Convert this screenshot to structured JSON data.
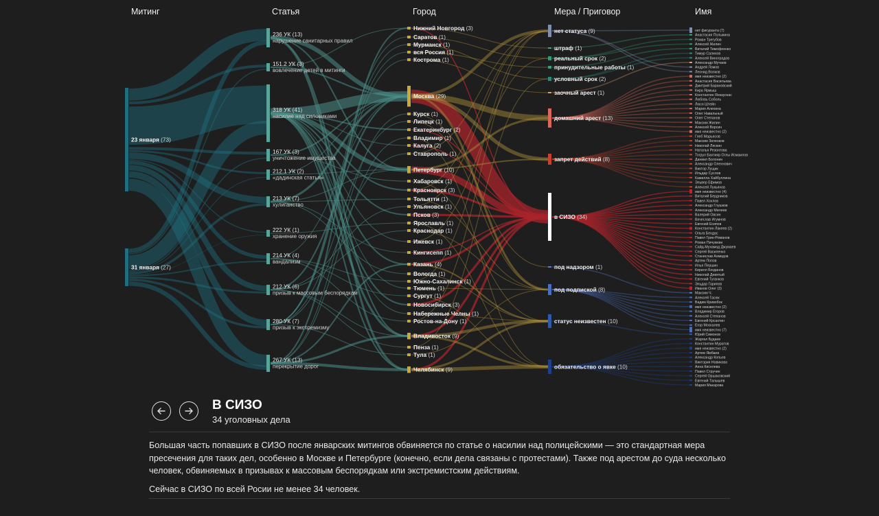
{
  "columns": [
    "Митинг",
    "Статья",
    "Город",
    "Мера / Приговор",
    "Имя"
  ],
  "colors": {
    "background": "#1e1e1e",
    "rally": "#1f6f80",
    "article": "#5aa59a",
    "city": "#c9a83c",
    "sizo": "#c0222b",
    "link_sizo": "#a8242b",
    "link_teal": "#4a8e88",
    "link_gold": "#b0913a"
  },
  "chart_data": {
    "type": "sankey",
    "rallies": [
      {
        "label": "23 января",
        "count": 73
      },
      {
        "label": "31 января",
        "count": 27
      }
    ],
    "articles": [
      {
        "code": "236 УК",
        "count": 13,
        "desc": "нарушение санитарных правил"
      },
      {
        "code": "151.2 УК",
        "count": 3,
        "desc": "вовлечение детей в митинги"
      },
      {
        "code": "318 УК",
        "count": 41,
        "desc": "насилие над силовиками"
      },
      {
        "code": "167 УК",
        "count": 3,
        "desc": "уничтожение имущества"
      },
      {
        "code": "212.1 УК",
        "count": 2,
        "desc": "«дадинская статья»"
      },
      {
        "code": "213 УК",
        "count": 7,
        "desc": "хулиганство"
      },
      {
        "code": "222 УК",
        "count": 1,
        "desc": "хранение оружия"
      },
      {
        "code": "214 УК",
        "count": 4,
        "desc": "вандализм"
      },
      {
        "code": "212 УК",
        "count": 6,
        "desc": "призыв к массовым беспорядкам"
      },
      {
        "code": "280 УК",
        "count": 7,
        "desc": "призыв к экстремизму"
      },
      {
        "code": "267 УК",
        "count": 13,
        "desc": "перекрытие дорог"
      }
    ],
    "cities": [
      {
        "label": "Нижний Новгород",
        "count": 3
      },
      {
        "label": "Саратов",
        "count": 1
      },
      {
        "label": "Мурманск",
        "count": 1
      },
      {
        "label": "вся Россия",
        "count": 1
      },
      {
        "label": "Кострома",
        "count": 1
      },
      {
        "label": "Москва",
        "count": 29
      },
      {
        "label": "Курск",
        "count": 1
      },
      {
        "label": "Липецк",
        "count": 1
      },
      {
        "label": "Екатеринбург",
        "count": 2
      },
      {
        "label": "Владимир",
        "count": 1
      },
      {
        "label": "Калуга",
        "count": 2
      },
      {
        "label": "Ставрополь",
        "count": 1
      },
      {
        "label": "Петербург",
        "count": 10
      },
      {
        "label": "Хабаровск",
        "count": 1
      },
      {
        "label": "Красноярск",
        "count": 3
      },
      {
        "label": "Тольятти",
        "count": 1
      },
      {
        "label": "Ульяновск",
        "count": 1
      },
      {
        "label": "Псков",
        "count": 3
      },
      {
        "label": "Ярославль",
        "count": 1
      },
      {
        "label": "Краснодар",
        "count": 1
      },
      {
        "label": "Ижевск",
        "count": 1
      },
      {
        "label": "Кингисепп",
        "count": 1
      },
      {
        "label": "Казань",
        "count": 4
      },
      {
        "label": "Вологда",
        "count": 1
      },
      {
        "label": "Южно-Сахалинск",
        "count": 1
      },
      {
        "label": "Тюмень",
        "count": 1
      },
      {
        "label": "Сургут",
        "count": 1
      },
      {
        "label": "Новосибирск",
        "count": 3
      },
      {
        "label": "Набережные Челны",
        "count": 1
      },
      {
        "label": "Ростов-на-Дону",
        "count": 1
      },
      {
        "label": "Владивосток",
        "count": 9
      },
      {
        "label": "Пенза",
        "count": 1
      },
      {
        "label": "Тула",
        "count": 1
      },
      {
        "label": "Челябинск",
        "count": 9
      }
    ],
    "measures": [
      {
        "label": "нет статуса",
        "count": 9,
        "color": "#7f8fae"
      },
      {
        "label": "штраф",
        "count": 1,
        "color": "#3fa582"
      },
      {
        "label": "реальный срок",
        "count": 2,
        "color": "#2f9b6e"
      },
      {
        "label": "принудительные работы",
        "count": 1,
        "color": "#3a9e7a"
      },
      {
        "label": "условный срок",
        "count": 2,
        "color": "#2a8a7a"
      },
      {
        "label": "заочный арест",
        "count": 1,
        "color": "#e0a070"
      },
      {
        "label": "домашний арест",
        "count": 13,
        "color": "#d9685a"
      },
      {
        "label": "запрет действий",
        "count": 8,
        "color": "#c8412f"
      },
      {
        "label": "в СИЗО",
        "count": 34,
        "color": "#ffffff"
      },
      {
        "label": "под надзором",
        "count": 1,
        "color": "#5a7ed0"
      },
      {
        "label": "под подпиской",
        "count": 8,
        "color": "#4a6fc0"
      },
      {
        "label": "статус неизвестен",
        "count": 10,
        "color": "#2f5aa8"
      },
      {
        "label": "обязательство о явке",
        "count": 10,
        "color": "#1f3f88"
      }
    ],
    "names": [
      "нет фигуранта (7)",
      "Анастасия Полыкина",
      "Роман Трегубов",
      "Алексей Жилин",
      "Виталий Тимофеенко",
      "Тимур Салихов",
      "Алексей Виноградов",
      "Александр Мучаев",
      "Андрей Ломов",
      "Леонид Волков",
      "имя неизвестно (2)",
      "Анастасия Васильева",
      "Дмитрий Барановский",
      "Кира Ярмыш",
      "Константин Янкаускас",
      "Любовь Соболь",
      "Люся Штейн",
      "Мария Алехина",
      "Олег Навальный",
      "Олег Степанов",
      "Максим Жилин",
      "Алексей Ворсин",
      "имя неизвестно (2)",
      "Глеб Марьясов",
      "Максим Зеленков",
      "Николай Ляскин",
      "Наталья Резонтова",
      "Тогрул Бахтияр Оглы Исмаилов",
      "Даниил Болонин",
      "Александр Олехнович",
      "Виктор Лущик",
      "Ильдар Суслов",
      "Камилла Хайбуллина",
      "Эльвер Ефимов",
      "Алексей Лукьянов",
      "имя неизвестно (4)",
      "Виталий Бердников",
      "Павел Хохлов",
      "Александр Глушков",
      "Александр Милеев",
      "Валерий Овсин",
      "Вячеслав Игумнов",
      "Евгений Есипов",
      "Константин Лакеев (2)",
      "Ольга Бендас",
      "Павел Грин-Романов",
      "Роман Пичужкин",
      "Сайд-Мухамад Джумаев",
      "Сергей Василенко",
      "Станислав Ахмедов",
      "Артем Попов",
      "Илья Першин",
      "Кирилл Богданов",
      "Николай Девятый",
      "Евгений Туганков",
      "Эльдар Гарипов",
      "Иванов Олег (3)",
      "Максим Ч.",
      "Алексей Гасюк",
      "Вадим Кривобок",
      "имя неизвестно (2)",
      "Владимир Егоров",
      "Алексей Степанов",
      "Евгений Крсахтин",
      "Егор Москалев",
      "имя неизвестно (7)",
      "Юрий Симонов",
      "Жаргал Будаев",
      "Константин Муратов",
      "имя неизвестно (2)",
      "Артем Ямбаев",
      "Александр Копьев",
      "Виктория Новикова",
      "Анна Киселева",
      "Павел Стручин",
      "Сергей Оршаковский",
      "Евгений Талышев",
      "Мария Макарова"
    ]
  },
  "nav": {
    "prev_icon": "arrow-left-icon",
    "next_icon": "arrow-right-icon"
  },
  "panel": {
    "title": "В СИЗО",
    "subtitle": "34 уголовных дела",
    "paragraph1": "Большая часть попавших в СИЗО после январских митингов обвиняется по статье о насилии над полицейскими — это стандартная мера пресечения для таких дел, особенно в Москве и Петербурге (конечно, если дела связаны с протестами). Также под арестом до суда несколько человек, обвиняемых в призывах к массовым беспорядкам или экстремистским действиям.",
    "paragraph2": "Сейчас в СИЗО по всей Росии не менее 34 человек."
  }
}
